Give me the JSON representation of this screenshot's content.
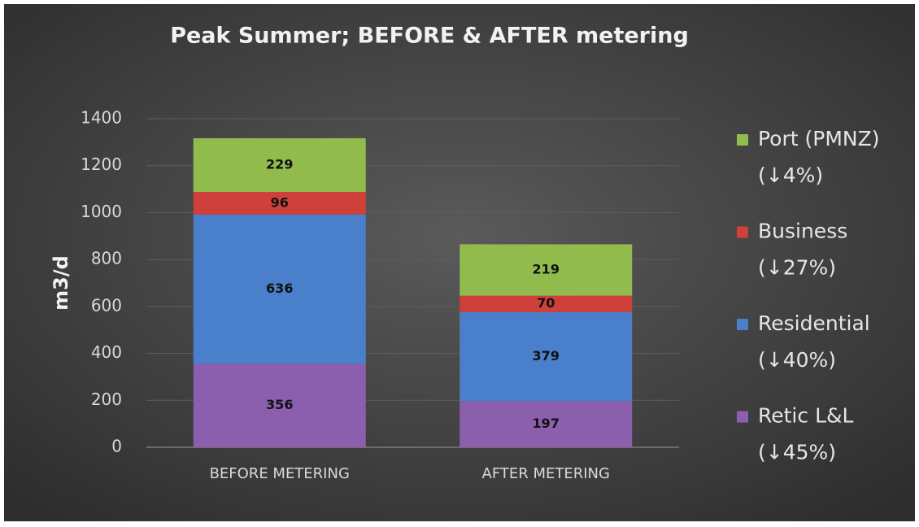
{
  "chart_data": {
    "type": "stacked_bar",
    "title": "Peak Summer; BEFORE & AFTER metering",
    "y_label": "m3/d",
    "categories": [
      "BEFORE METERING",
      "AFTER METERING"
    ],
    "series": [
      {
        "name": "Retic L&L",
        "change": "(↓45%)",
        "color": "#8b5fae",
        "values": [
          356,
          197
        ]
      },
      {
        "name": "Residential",
        "change": "(↓40%)",
        "color": "#4a7fcb",
        "values": [
          636,
          379
        ]
      },
      {
        "name": "Business",
        "change": "(↓27%)",
        "color": "#d0403b",
        "values": [
          96,
          70
        ]
      },
      {
        "name": "Port (PMNZ)",
        "change": "(↓4%)",
        "color": "#92bb4e",
        "values": [
          229,
          219
        ]
      }
    ],
    "ylim": [
      0,
      1400
    ],
    "yticks": [
      0,
      200,
      400,
      600,
      800,
      1000,
      1200,
      1400
    ],
    "grid": true,
    "legend": "right"
  }
}
